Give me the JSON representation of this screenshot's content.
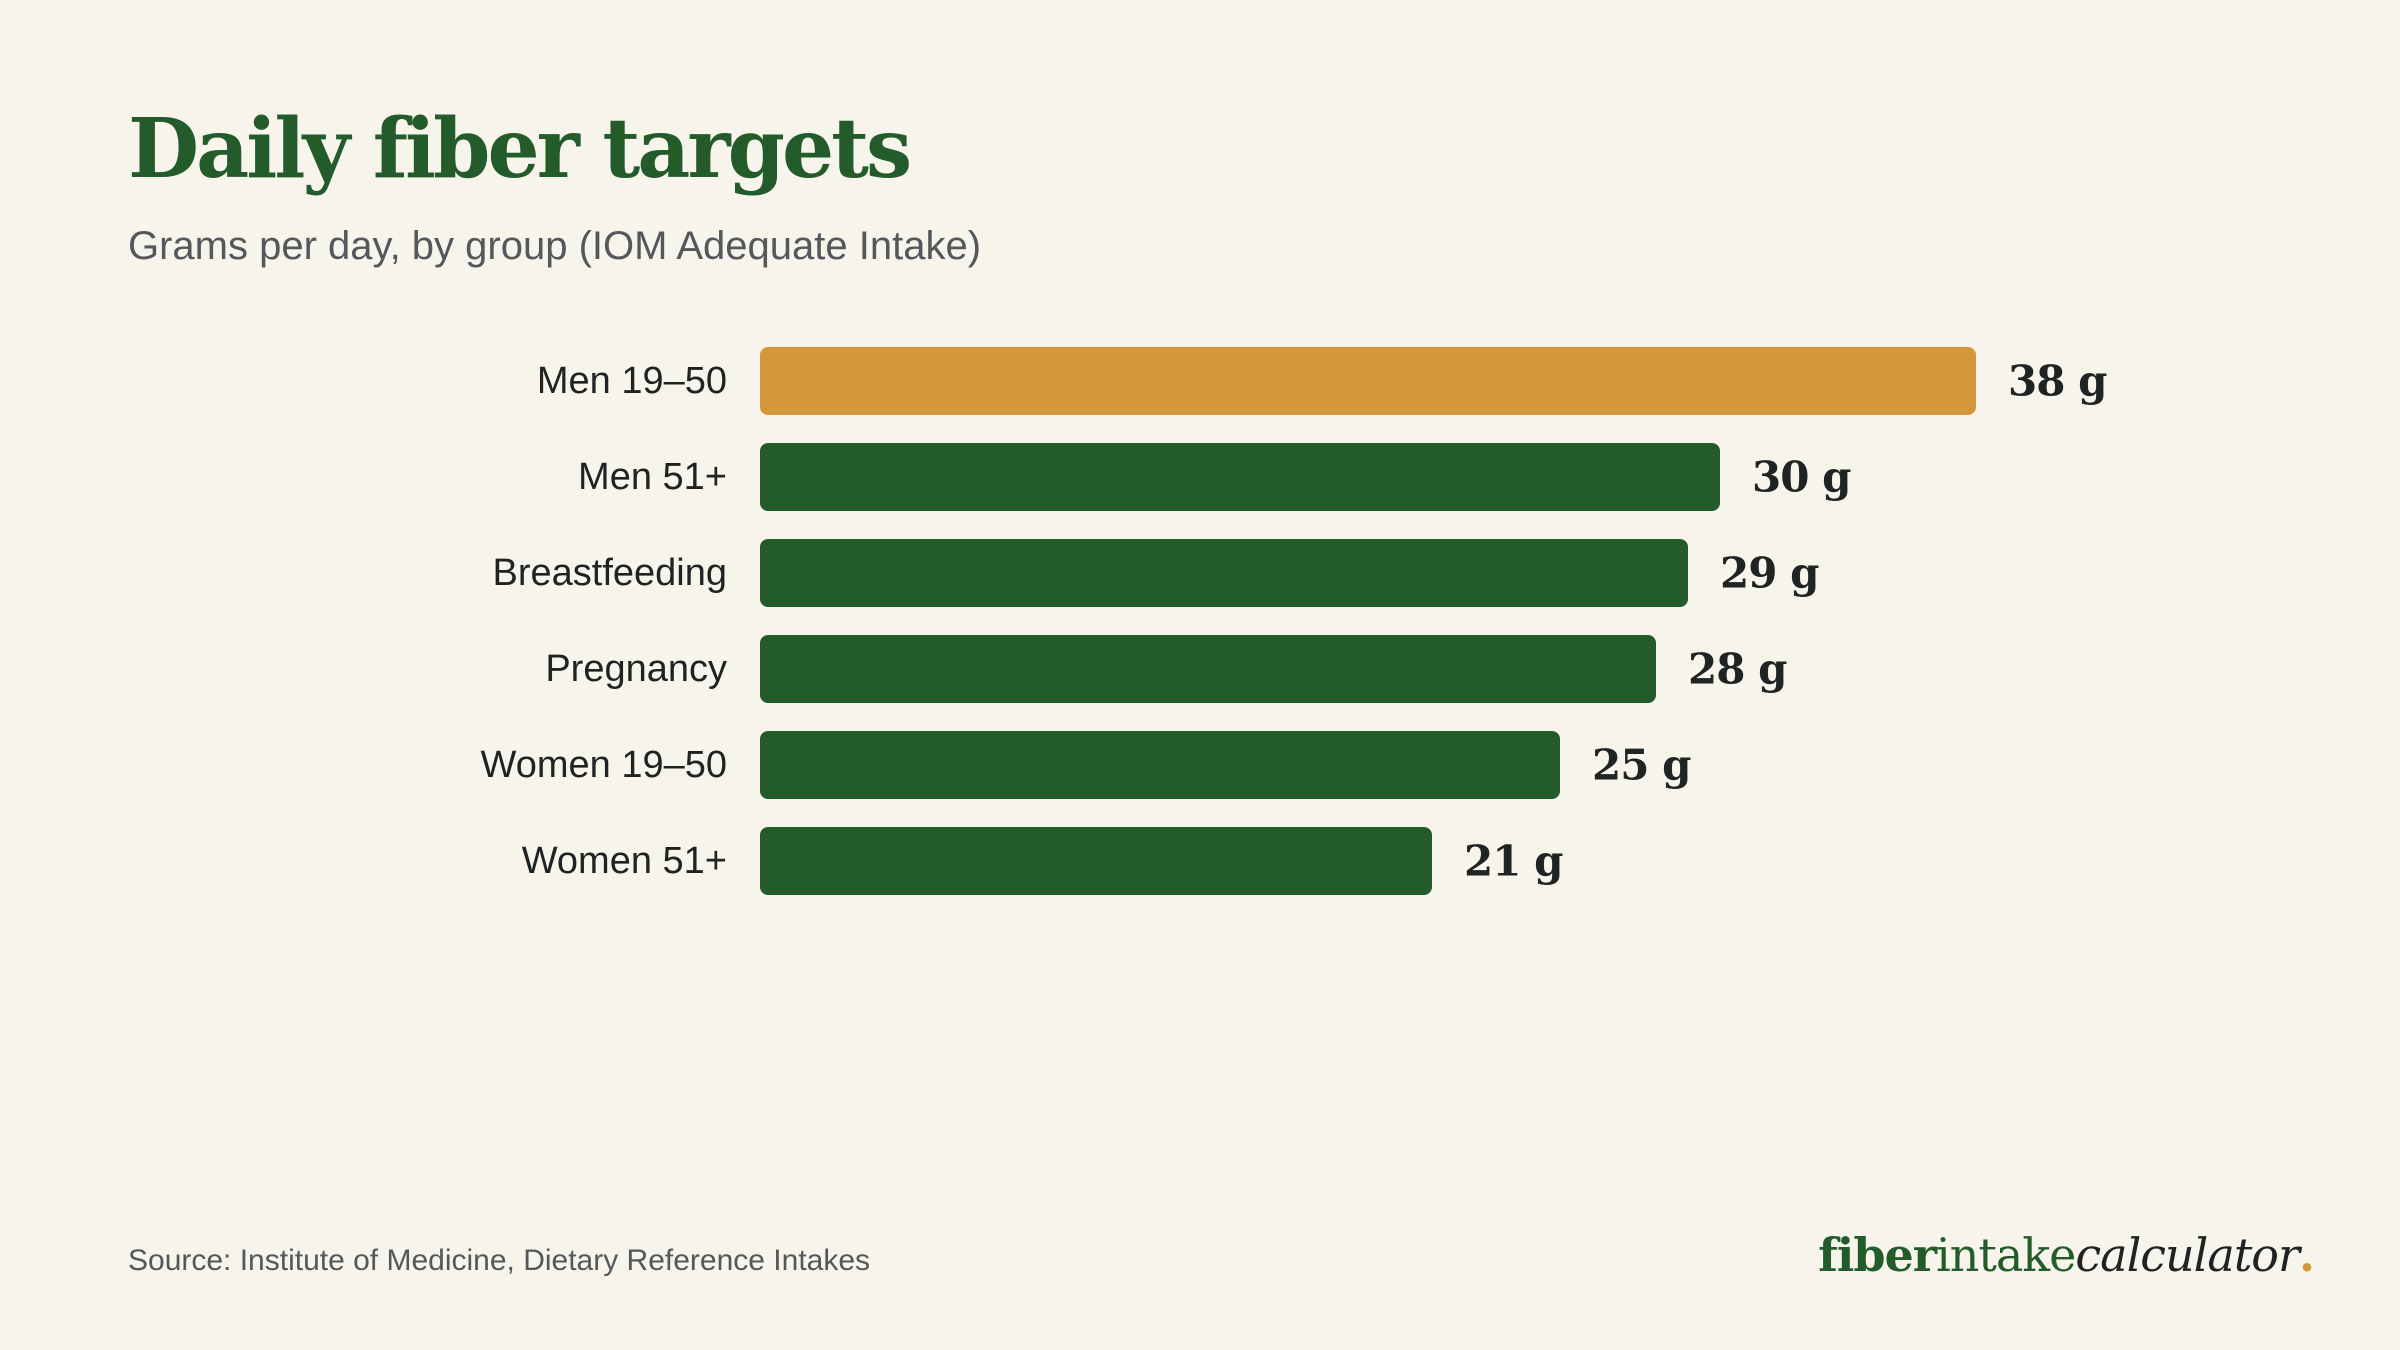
{
  "header": {
    "title": "Daily fiber targets",
    "subtitle": "Grams per day, by group (IOM Adequate Intake)"
  },
  "chart_data": {
    "type": "bar",
    "orientation": "horizontal",
    "categories": [
      "Men 19–50",
      "Men 51+",
      "Breastfeeding",
      "Pregnancy",
      "Women 19–50",
      "Women 51+"
    ],
    "values": [
      38,
      30,
      29,
      28,
      25,
      21
    ],
    "value_labels": [
      "38 g",
      "30 g",
      "29 g",
      "28 g",
      "25 g",
      "21 g"
    ],
    "unit": "g",
    "highlight_index": 0,
    "xlim": [
      0,
      38
    ],
    "grid": false,
    "colors": {
      "highlight": "#d4973a",
      "default": "#235c2a"
    }
  },
  "footer": {
    "source": "Source: Institute of Medicine, Dietary Reference Intakes",
    "brand": {
      "part1": "fiber",
      "part2": "intake",
      "part3": "calculator",
      "part4": "."
    }
  }
}
